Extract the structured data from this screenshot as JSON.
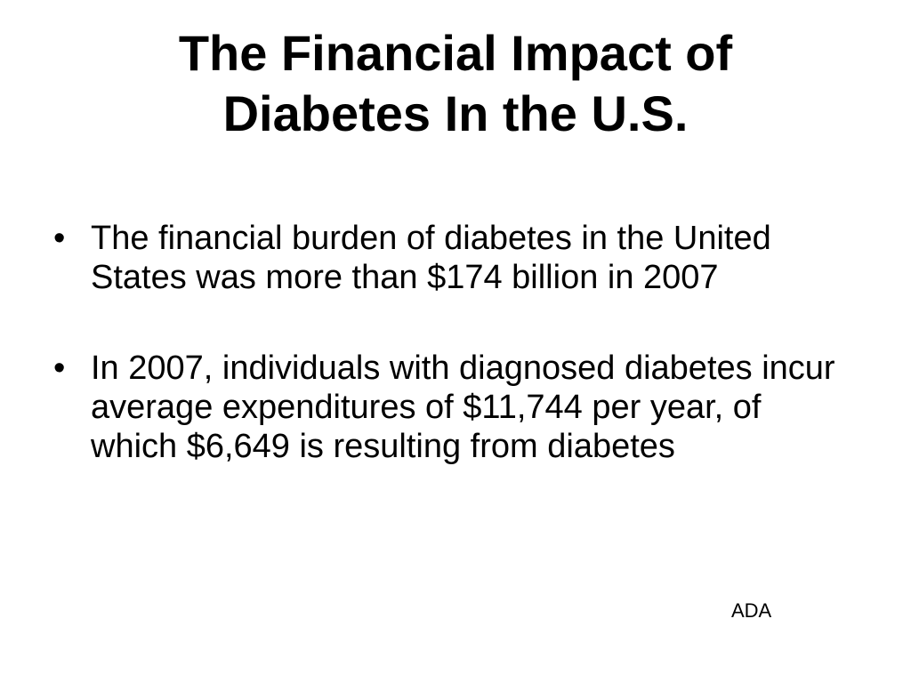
{
  "slide": {
    "title_lines": [
      "The Financial Impact of",
      "Diabetes In the U.S."
    ],
    "bullet_marker": "•",
    "bullets": [
      "The financial burden of diabetes in the United States was more than $174 billion in 2007",
      "In 2007, individuals with diagnosed diabetes incur average expenditures of $11,744 per year, of which $6,649 is resulting from diabetes"
    ],
    "source": "ADA"
  }
}
